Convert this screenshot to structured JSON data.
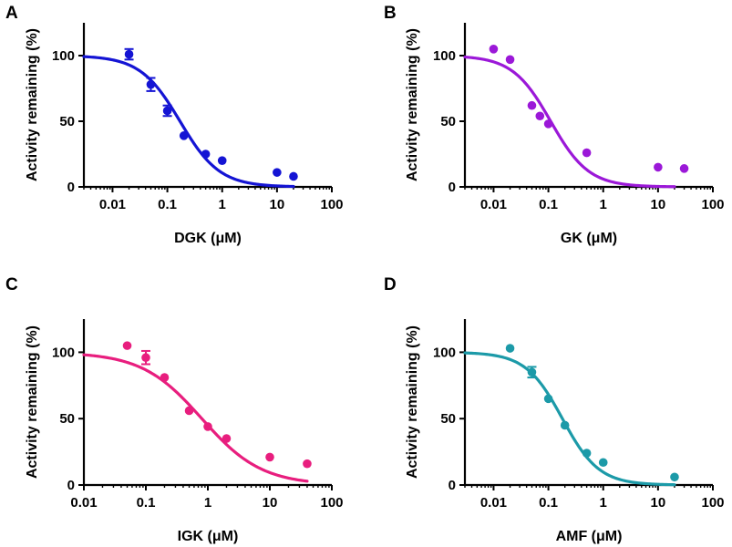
{
  "figure": {
    "panels": [
      "A",
      "B",
      "C",
      "D"
    ]
  },
  "chart_data": [
    {
      "panel": "A",
      "type": "scatter",
      "title": "",
      "xlabel": "DGK (μM)",
      "ylabel": "Activity remaining (%)",
      "x_scale": "log",
      "xlim": [
        0.003,
        100
      ],
      "ylim": [
        0,
        125
      ],
      "x_ticks": [
        0.01,
        0.1,
        1,
        10,
        100
      ],
      "x_tick_labels": [
        "0.01",
        "0.1",
        "1",
        "10",
        "100"
      ],
      "y_ticks": [
        0,
        50,
        100
      ],
      "y_tick_labels": [
        "0",
        "50",
        "100"
      ],
      "color": "#1414d4",
      "points": [
        {
          "x": 0.02,
          "y": 101,
          "err": 4
        },
        {
          "x": 0.05,
          "y": 78,
          "err": 5
        },
        {
          "x": 0.1,
          "y": 58,
          "err": 4
        },
        {
          "x": 0.2,
          "y": 39
        },
        {
          "x": 0.5,
          "y": 25
        },
        {
          "x": 1,
          "y": 20
        },
        {
          "x": 10,
          "y": 11
        },
        {
          "x": 20,
          "y": 8
        }
      ],
      "fit": {
        "model": "four-parameter logistic",
        "top": 100,
        "bottom": 0,
        "ic50": 0.17,
        "hill": 1.2,
        "x_range": [
          0.003,
          20
        ]
      }
    },
    {
      "panel": "B",
      "type": "scatter",
      "title": "",
      "xlabel": "GK (μM)",
      "ylabel": "Activity remaining (%)",
      "x_scale": "log",
      "xlim": [
        0.003,
        100
      ],
      "ylim": [
        0,
        125
      ],
      "x_ticks": [
        0.01,
        0.1,
        1,
        10,
        100
      ],
      "x_tick_labels": [
        "0.01",
        "0.1",
        "1",
        "10",
        "100"
      ],
      "y_ticks": [
        0,
        50,
        100
      ],
      "y_tick_labels": [
        "0",
        "50",
        "100"
      ],
      "color": "#9b18d8",
      "points": [
        {
          "x": 0.01,
          "y": 105
        },
        {
          "x": 0.02,
          "y": 97
        },
        {
          "x": 0.05,
          "y": 62
        },
        {
          "x": 0.07,
          "y": 54
        },
        {
          "x": 0.1,
          "y": 48
        },
        {
          "x": 0.5,
          "y": 26
        },
        {
          "x": 10,
          "y": 15
        },
        {
          "x": 30,
          "y": 14
        }
      ],
      "fit": {
        "model": "four-parameter logistic",
        "top": 100,
        "bottom": 0,
        "ic50": 0.11,
        "hill": 1.25,
        "x_range": [
          0.003,
          20
        ]
      }
    },
    {
      "panel": "C",
      "type": "scatter",
      "title": "",
      "xlabel": "IGK (μM)",
      "ylabel": "Activity remaining (%)",
      "x_scale": "log",
      "xlim": [
        0.01,
        100
      ],
      "ylim": [
        0,
        125
      ],
      "x_ticks": [
        0.01,
        0.1,
        1,
        10,
        100
      ],
      "x_tick_labels": [
        "0.01",
        "0.1",
        "1",
        "10",
        "100"
      ],
      "y_ticks": [
        0,
        50,
        100
      ],
      "y_tick_labels": [
        "0",
        "50",
        "100"
      ],
      "color": "#e81e7e",
      "points": [
        {
          "x": 0.05,
          "y": 105
        },
        {
          "x": 0.1,
          "y": 96,
          "err": 5
        },
        {
          "x": 0.2,
          "y": 81
        },
        {
          "x": 0.5,
          "y": 56
        },
        {
          "x": 1,
          "y": 44
        },
        {
          "x": 2,
          "y": 35
        },
        {
          "x": 10,
          "y": 21
        },
        {
          "x": 40,
          "y": 16
        }
      ],
      "fit": {
        "model": "four-parameter logistic",
        "top": 100,
        "bottom": 0,
        "ic50": 0.8,
        "hill": 0.9,
        "x_range": [
          0.01,
          40
        ]
      }
    },
    {
      "panel": "D",
      "type": "scatter",
      "title": "",
      "xlabel": "AMF (μM)",
      "ylabel": "Activity remaining (%)",
      "x_scale": "log",
      "xlim": [
        0.003,
        100
      ],
      "ylim": [
        0,
        125
      ],
      "x_ticks": [
        0.01,
        0.1,
        1,
        10,
        100
      ],
      "x_tick_labels": [
        "0.01",
        "0.1",
        "1",
        "10",
        "100"
      ],
      "y_ticks": [
        0,
        50,
        100
      ],
      "y_tick_labels": [
        "0",
        "50",
        "100"
      ],
      "color": "#1c9aa8",
      "points": [
        {
          "x": 0.02,
          "y": 103
        },
        {
          "x": 0.05,
          "y": 85,
          "err": 4
        },
        {
          "x": 0.1,
          "y": 65
        },
        {
          "x": 0.2,
          "y": 45
        },
        {
          "x": 0.5,
          "y": 24
        },
        {
          "x": 1,
          "y": 17
        },
        {
          "x": 20,
          "y": 6
        }
      ],
      "fit": {
        "model": "four-parameter logistic",
        "top": 100,
        "bottom": 0,
        "ic50": 0.18,
        "hill": 1.3,
        "x_range": [
          0.003,
          20
        ]
      }
    }
  ]
}
